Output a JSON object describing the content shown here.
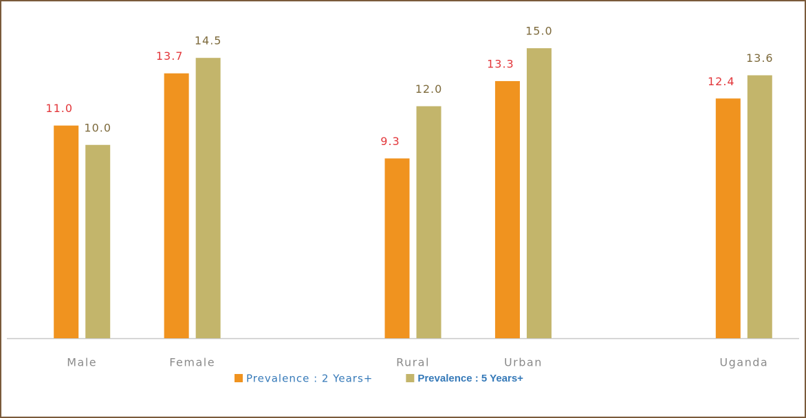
{
  "chart_data": {
    "type": "bar",
    "categories": [
      "Male",
      "Female",
      null,
      "Rural",
      "Urban",
      null,
      "Uganda"
    ],
    "series": [
      {
        "name": "Prevalence : 2 Years+",
        "color": "#f0931f",
        "label_color": "#e2363a",
        "values": [
          11.0,
          13.7,
          null,
          9.3,
          13.3,
          null,
          12.4
        ],
        "value_labels": [
          "11.0",
          "13.7",
          null,
          "9.3",
          "13.3",
          null,
          "12.4"
        ]
      },
      {
        "name": "Prevalence : 5 Years+",
        "color": "#c3b56b",
        "label_color": "#7d6a3c",
        "values": [
          10.0,
          14.5,
          null,
          12.0,
          15.0,
          null,
          13.6
        ],
        "value_labels": [
          "10.0",
          "14.5",
          null,
          "12.0",
          "15.0",
          null,
          "13.6"
        ]
      }
    ],
    "ylim": [
      0,
      16
    ],
    "legend": "bottom"
  }
}
